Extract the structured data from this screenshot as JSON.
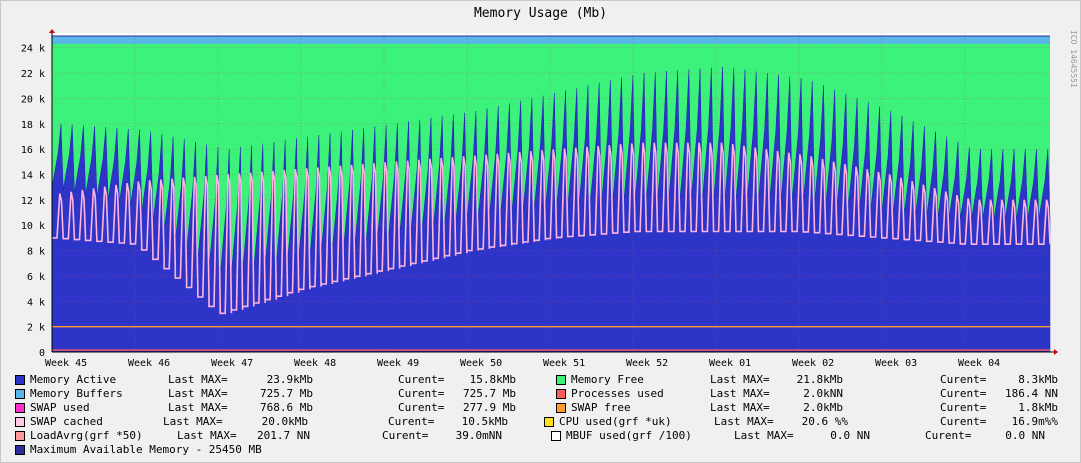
{
  "title": "Memory Usage (Mb)",
  "side_label": "ICO 14645551",
  "chart_data": {
    "type": "area",
    "title": "Memory Usage (Mb)",
    "ylim": [
      0,
      25000
    ],
    "y_ticks": [
      {
        "v": 0,
        "label": "0"
      },
      {
        "v": 2000,
        "label": "2 k"
      },
      {
        "v": 4000,
        "label": "4 k"
      },
      {
        "v": 6000,
        "label": "6 k"
      },
      {
        "v": 8000,
        "label": "8 k"
      },
      {
        "v": 10000,
        "label": "10 k"
      },
      {
        "v": 12000,
        "label": "12 k"
      },
      {
        "v": 14000,
        "label": "14 k"
      },
      {
        "v": 16000,
        "label": "16 k"
      },
      {
        "v": 18000,
        "label": "18 k"
      },
      {
        "v": 20000,
        "label": "20 k"
      },
      {
        "v": 22000,
        "label": "22 k"
      },
      {
        "v": 24000,
        "label": "24 k"
      }
    ],
    "x_ticks": [
      "Week 45",
      "Week 46",
      "Week 47",
      "Week 48",
      "Week 49",
      "Week 50",
      "Week 51",
      "Week 52",
      "Week 01",
      "Week 02",
      "Week 03",
      "Week 04"
    ],
    "x_weeks": [
      0,
      1,
      2,
      3,
      4,
      5,
      6,
      7,
      8,
      9,
      10,
      11,
      12
    ],
    "series": [
      {
        "name": "Memory Active",
        "color": "#2d35c8",
        "baseline": [
          13000,
          11500,
          6000,
          7500,
          9000,
          10500,
          11500,
          12000,
          12000,
          12000,
          11000,
          10500,
          10500
        ],
        "peaks": [
          18000,
          17500,
          16000,
          17000,
          18000,
          19000,
          20500,
          22000,
          22500,
          21500,
          19000,
          16000,
          16000
        ]
      },
      {
        "name": "Memory Free",
        "color": "#3df27a"
      },
      {
        "name": "Memory Buffers",
        "color": "#58b6e8"
      },
      {
        "name": "SWAP cached",
        "color": "#ffb4e0",
        "baseline": [
          9000,
          8500,
          3000,
          5000,
          6500,
          8000,
          9000,
          9500,
          9500,
          9500,
          9000,
          8500,
          8500
        ],
        "peaks": [
          12500,
          13500,
          14000,
          14500,
          15000,
          15500,
          16000,
          16500,
          16500,
          15500,
          14000,
          12000,
          12000
        ]
      },
      {
        "name": "Maximum Available Memory - 25450 MB",
        "color": "#2c2c9c",
        "value": 25450
      }
    ],
    "horizontal_lines": [
      {
        "name": "SWAP free",
        "value": 2000,
        "color": "#ff9933"
      },
      {
        "name": "Processes used",
        "value": 150,
        "color": "#ff5a5a"
      }
    ]
  },
  "legend": [
    [
      {
        "label": "Memory Active",
        "color": "#2d35c8",
        "last_max_text": "Last MAX=",
        "last_max": "23.9kMb",
        "curent_text": "Curent=",
        "curent": "15.8kMb"
      },
      {
        "label": "Memory Free",
        "color": "#3df27a",
        "last_max_text": "Last MAX=",
        "last_max": "21.8kMb",
        "curent_text": "Curent=",
        "curent": "8.3kMb"
      }
    ],
    [
      {
        "label": "Memory Buffers",
        "color": "#58b6e8",
        "last_max_text": "Last MAX=",
        "last_max": "725.7 Mb",
        "curent_text": "Curent=",
        "curent": "725.7 Mb"
      },
      {
        "label": "Processes used",
        "color": "#ff5a5a",
        "last_max_text": "Last MAX=",
        "last_max": "2.0kNN",
        "curent_text": "Curent=",
        "curent": "186.4 NN"
      }
    ],
    [
      {
        "label": "SWAP used",
        "color": "#ff33cc",
        "last_max_text": "Last MAX=",
        "last_max": "768.6 Mb",
        "curent_text": "Curent=",
        "curent": "277.9 Mb"
      },
      {
        "label": "SWAP free",
        "color": "#ff9933",
        "last_max_text": "Last MAX=",
        "last_max": "2.0kMb",
        "curent_text": "Curent=",
        "curent": "1.8kMb"
      }
    ],
    [
      {
        "label": "SWAP cached",
        "color": "#ffc8e6",
        "last_max_text": "Last MAX=",
        "last_max": "20.0kMb",
        "curent_text": "Curent=",
        "curent": "10.5kMb"
      },
      {
        "label": "CPU used(grf *uk)",
        "color": "#ffdd22",
        "last_max_text": "Last MAX=",
        "last_max": "20.6 %%",
        "curent_text": "Curent=",
        "curent": "16.9m%%"
      }
    ],
    [
      {
        "label": "LoadAvrg(grf *50)",
        "color": "#ff9999",
        "last_max_text": "Last MAX=",
        "last_max": "201.7 NN",
        "curent_text": "Curent=",
        "curent": "39.0mNN"
      },
      {
        "label": "MBUF used(grf /100)",
        "color": "#ffffff",
        "last_max_text": "Last MAX=",
        "last_max": "0.0 NN",
        "curent_text": "Curent=",
        "curent": "0.0 NN"
      }
    ],
    [
      {
        "label": "Maximum Available Memory - 25450 MB",
        "color": "#2c2c9c"
      }
    ]
  ]
}
